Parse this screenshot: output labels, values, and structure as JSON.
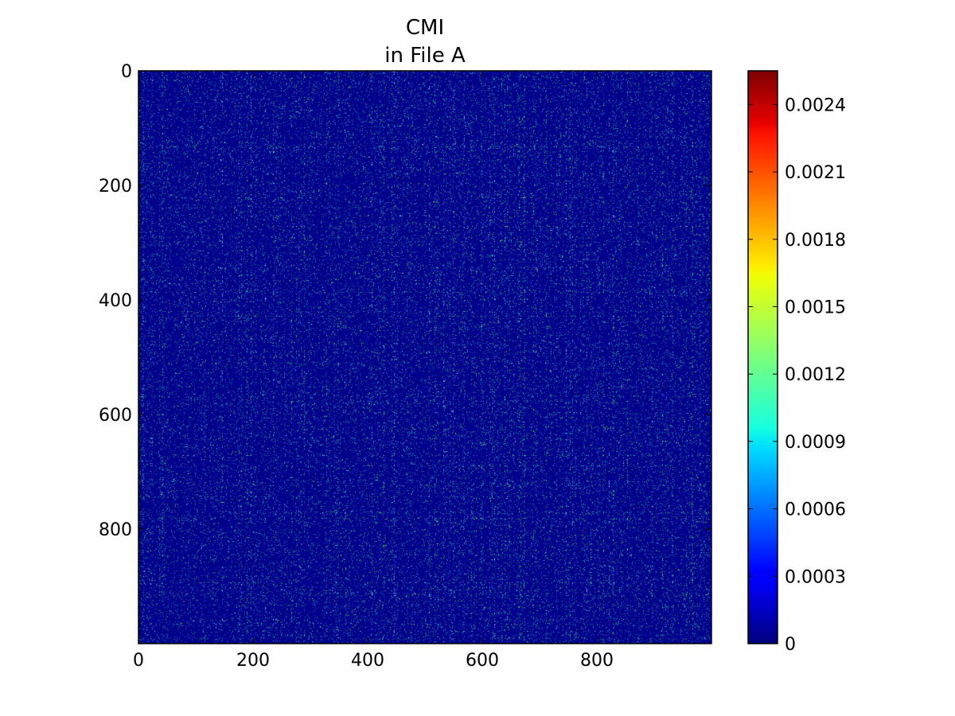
{
  "chart_data": {
    "type": "heatmap",
    "title": "CMI",
    "subtitle": "in File A",
    "xlabel": "",
    "ylabel": "",
    "matrix_size": 1000,
    "x_range": [
      0,
      1000
    ],
    "y_range": [
      0,
      1000
    ],
    "y_inverted": true,
    "x_ticks": [
      "0",
      "200",
      "400",
      "600",
      "800"
    ],
    "y_ticks": [
      "0",
      "200",
      "400",
      "600",
      "800"
    ],
    "colormap": "jet",
    "colorbar": {
      "min": 0,
      "max": 0.00255,
      "ticks": [
        "0",
        "0.0003",
        "0.0006",
        "0.0009",
        "0.0012",
        "0.0015",
        "0.0018",
        "0.0021",
        "0.0024"
      ]
    },
    "value_distribution": {
      "background_value": 3e-05,
      "highlight_value": 0.00115,
      "highlight_density": 0.05,
      "pattern": "sparse speckle with faint vertical and horizontal streaks"
    },
    "grid": false
  }
}
